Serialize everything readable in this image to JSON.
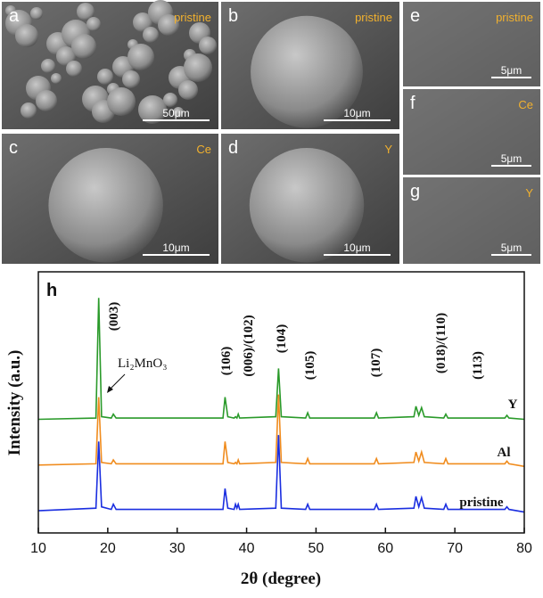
{
  "panels": [
    {
      "label": "a",
      "sample": "pristine",
      "scale": "50μm"
    },
    {
      "label": "b",
      "sample": "pristine",
      "scale": "10μm"
    },
    {
      "label": "c",
      "sample": "Ce",
      "scale": "10μm"
    },
    {
      "label": "d",
      "sample": "Y",
      "scale": "10μm"
    },
    {
      "label": "e",
      "sample": "pristine",
      "scale": "5μm"
    },
    {
      "label": "f",
      "sample": "Ce",
      "scale": "5μm"
    },
    {
      "label": "g",
      "sample": "Y",
      "scale": "5μm"
    }
  ],
  "chart_data": {
    "type": "line",
    "panel_label": "h",
    "xlabel": "2θ (degree)",
    "ylabel": "Intensity (a.u.)",
    "x": [
      10,
      18.3,
      18.7,
      19.1,
      20.5,
      20.8,
      21.2,
      36.6,
      36.9,
      37.3,
      38.2,
      38.4,
      38.6,
      38.8,
      39.0,
      44.2,
      44.6,
      45.0,
      48.5,
      48.8,
      49.1,
      58.4,
      58.7,
      59.0,
      64.1,
      64.4,
      64.8,
      65.2,
      65.6,
      68.4,
      68.7,
      69.0,
      77.2,
      77.5,
      77.8,
      80
    ],
    "series": [
      {
        "name": "Y",
        "color": "#2a9a2a",
        "values": [
          43.5,
          44,
          90,
          44.5,
          44,
          45.5,
          44,
          44,
          52,
          44.5,
          44,
          44.5,
          44,
          45.5,
          44,
          44.5,
          63,
          44.5,
          44,
          46,
          44,
          44,
          46,
          44,
          44.5,
          48.5,
          45,
          48,
          44.5,
          44,
          45.5,
          44,
          44,
          45,
          44,
          43.5
        ]
      },
      {
        "name": "Al",
        "color": "#f08c1e",
        "values": [
          26,
          26.5,
          52,
          27,
          26.5,
          28,
          26.5,
          26.5,
          35,
          27,
          26.5,
          27,
          26.5,
          28,
          26.5,
          27,
          53,
          27,
          26.5,
          28.5,
          26.5,
          26.5,
          28.5,
          26.5,
          27,
          31,
          27.5,
          31,
          27,
          26.5,
          28.5,
          26.5,
          26.5,
          27.5,
          26.5,
          25.5
        ]
      },
      {
        "name": "pristine",
        "color": "#1a2ee0",
        "values": [
          8.5,
          9.5,
          35,
          10,
          9,
          11,
          9,
          9,
          17,
          9.5,
          9,
          11,
          9.5,
          11,
          9,
          9.5,
          37.5,
          9.5,
          9,
          11,
          9,
          9,
          11,
          9,
          9.5,
          14,
          10,
          13.5,
          9.5,
          9,
          11,
          9,
          9,
          10,
          9,
          8
        ]
      }
    ],
    "xlim": [
      10,
      80
    ],
    "xticks": [
      10,
      20,
      30,
      40,
      50,
      60,
      70,
      80
    ],
    "ylim": [
      0,
      100
    ],
    "annotations": [
      "(003)",
      "Li₂MnO₃",
      "(106)",
      "(006)/(102)",
      "(104)",
      "(105)",
      "(107)",
      "(018)/(110)",
      "(113)"
    ]
  }
}
